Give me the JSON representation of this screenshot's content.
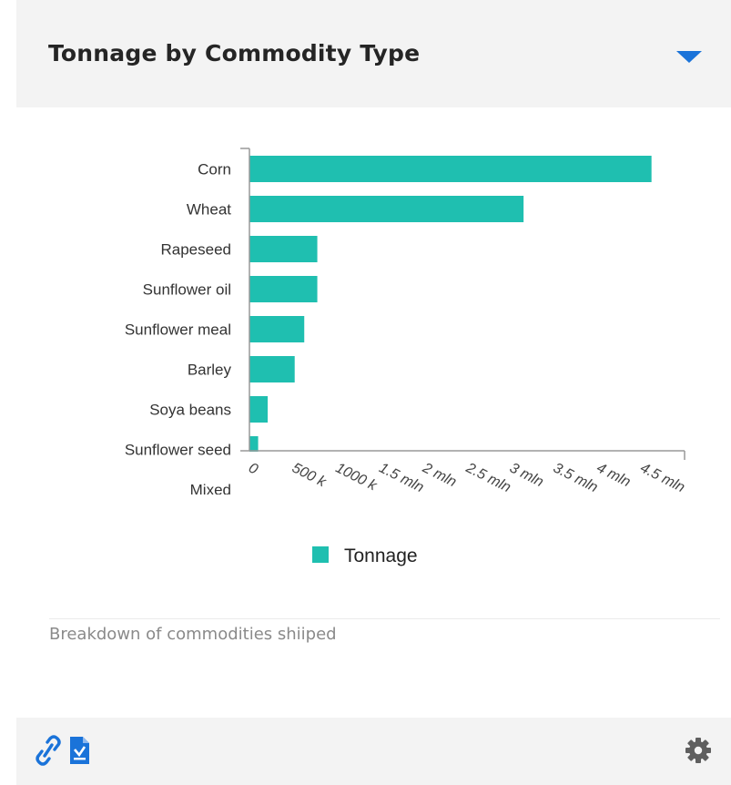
{
  "card": {
    "title": "Tonnage by Commodity Type",
    "description": "Breakdown of commodities shiiped"
  },
  "colors": {
    "bar": "#1fbfb0",
    "accent": "#1a73d9",
    "gear": "#5f5f5f",
    "header_bg": "#f3f3f3"
  },
  "icons": {
    "collapse": "caret-down-icon",
    "link": "link-icon",
    "export": "export-document-icon",
    "settings": "gear-icon"
  },
  "chart_data": {
    "type": "bar",
    "orientation": "horizontal",
    "title": "",
    "xlabel": "",
    "ylabel": "",
    "categories": [
      "Corn",
      "Wheat",
      "Rapeseed",
      "Sunflower oil",
      "Sunflower meal",
      "Barley",
      "Soya beans",
      "Sunflower seed",
      "Mixed"
    ],
    "series": [
      {
        "name": "Tonnage",
        "values": [
          4620000,
          3150000,
          780000,
          780000,
          630000,
          520000,
          210000,
          100000,
          0
        ]
      }
    ],
    "xlim": [
      0,
      5000000
    ],
    "x_ticks": [
      0,
      500000,
      1000000,
      1500000,
      2000000,
      2500000,
      3000000,
      3500000,
      4000000,
      4500000
    ],
    "x_tick_labels": [
      "0",
      "500 k",
      "1000 k",
      "1.5 mln",
      "2 mln",
      "2.5 mln",
      "3 mln",
      "3.5 mln",
      "4 mln",
      "4.5 mln"
    ],
    "grid": false,
    "legend": {
      "position": "bottom-center",
      "entries": [
        "Tonnage"
      ]
    }
  }
}
